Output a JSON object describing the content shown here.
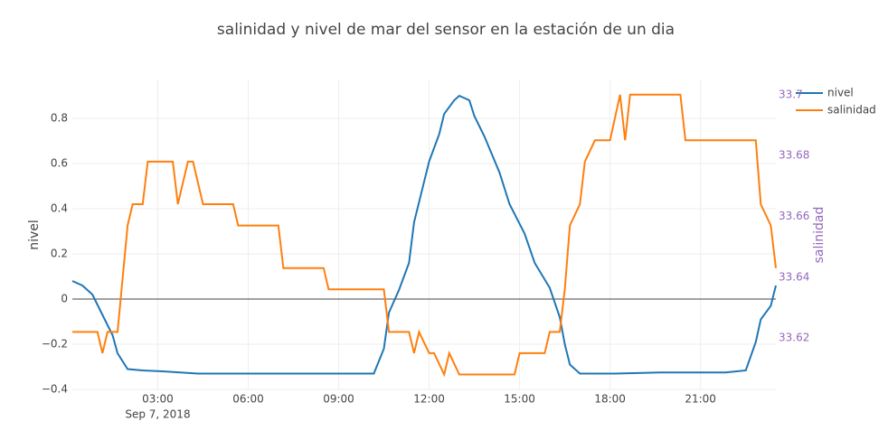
{
  "chart_data": {
    "type": "line",
    "title": "salinidad y nivel de mar del sensor en la estación de un dia",
    "y_label": "nivel",
    "y2_label": "salinidad",
    "x_date_label": "Sep 7, 2018",
    "xlim": [
      "2018-09-07 00:10",
      "2018-09-07 23:30"
    ],
    "xticks": [
      {
        "value": "2018-09-07 03:00",
        "label": "03:00"
      },
      {
        "value": "2018-09-07 06:00",
        "label": "06:00"
      },
      {
        "value": "2018-09-07 09:00",
        "label": "09:00"
      },
      {
        "value": "2018-09-07 12:00",
        "label": "12:00"
      },
      {
        "value": "2018-09-07 15:00",
        "label": "15:00"
      },
      {
        "value": "2018-09-07 18:00",
        "label": "18:00"
      },
      {
        "value": "2018-09-07 21:00",
        "label": "21:00"
      }
    ],
    "ylim": [
      -0.404,
      0.972
    ],
    "yticks": [
      {
        "value": -0.4,
        "label": "−0.4"
      },
      {
        "value": -0.2,
        "label": "−0.2"
      },
      0,
      0.2,
      0.4,
      0.6,
      0.8
    ],
    "y2lim": [
      33.6028,
      33.705
    ],
    "y2ticks": [
      33.62,
      33.64,
      33.66,
      33.68,
      33.7
    ],
    "grid": true,
    "legend": "top-right",
    "series": [
      {
        "name": "nivel",
        "color": "#1f77b4",
        "x": [
          "2018-09-07 00:10",
          "2018-09-07 00:30",
          "2018-09-07 00:50",
          "2018-09-07 01:10",
          "2018-09-07 01:30",
          "2018-09-07 01:40",
          "2018-09-07 02:00",
          "2018-09-07 02:30",
          "2018-09-07 03:10",
          "2018-09-07 04:20",
          "2018-09-07 05:20",
          "2018-09-07 06:50",
          "2018-09-07 08:00",
          "2018-09-07 08:50",
          "2018-09-07 10:10",
          "2018-09-07 10:30",
          "2018-09-07 10:40",
          "2018-09-07 11:00",
          "2018-09-07 11:20",
          "2018-09-07 11:30",
          "2018-09-07 12:00",
          "2018-09-07 12:20",
          "2018-09-07 12:30",
          "2018-09-07 12:50",
          "2018-09-07 13:00",
          "2018-09-07 13:20",
          "2018-09-07 13:30",
          "2018-09-07 13:50",
          "2018-09-07 14:20",
          "2018-09-07 14:40",
          "2018-09-07 15:10",
          "2018-09-07 15:30",
          "2018-09-07 16:00",
          "2018-09-07 16:20",
          "2018-09-07 16:30",
          "2018-09-07 16:40",
          "2018-09-07 17:00",
          "2018-09-07 18:10",
          "2018-09-07 19:40",
          "2018-09-07 21:50",
          "2018-09-07 22:30",
          "2018-09-07 22:50",
          "2018-09-07 23:00",
          "2018-09-07 23:20",
          "2018-09-07 23:30"
        ],
        "values": [
          0.08,
          0.06,
          0.02,
          -0.07,
          -0.16,
          -0.24,
          -0.31,
          -0.316,
          -0.32,
          -0.33,
          -0.33,
          -0.33,
          -0.33,
          -0.33,
          -0.33,
          -0.22,
          -0.06,
          0.04,
          0.16,
          0.34,
          0.61,
          0.73,
          0.82,
          0.88,
          0.9,
          0.88,
          0.81,
          0.72,
          0.56,
          0.42,
          0.29,
          0.16,
          0.05,
          -0.08,
          -0.2,
          -0.29,
          -0.33,
          -0.33,
          -0.325,
          -0.325,
          -0.316,
          -0.19,
          -0.09,
          -0.03,
          0.06
        ]
      },
      {
        "name": "salinidad",
        "color": "#ff7f0e",
        "axis": "y2",
        "x": [
          "2018-09-07 00:10",
          "2018-09-07 01:00",
          "2018-09-07 01:10",
          "2018-09-07 01:20",
          "2018-09-07 01:40",
          "2018-09-07 02:00",
          "2018-09-07 02:10",
          "2018-09-07 02:30",
          "2018-09-07 02:40",
          "2018-09-07 03:30",
          "2018-09-07 03:40",
          "2018-09-07 04:00",
          "2018-09-07 04:10",
          "2018-09-07 04:30",
          "2018-09-07 05:30",
          "2018-09-07 05:40",
          "2018-09-07 07:00",
          "2018-09-07 07:10",
          "2018-09-07 08:30",
          "2018-09-07 08:40",
          "2018-09-07 10:30",
          "2018-09-07 10:40",
          "2018-09-07 11:20",
          "2018-09-07 11:30",
          "2018-09-07 11:40",
          "2018-09-07 12:00",
          "2018-09-07 12:10",
          "2018-09-07 12:30",
          "2018-09-07 12:40",
          "2018-09-07 13:00",
          "2018-09-07 14:50",
          "2018-09-07 15:00",
          "2018-09-07 15:50",
          "2018-09-07 16:00",
          "2018-09-07 16:20",
          "2018-09-07 16:30",
          "2018-09-07 16:40",
          "2018-09-07 17:00",
          "2018-09-07 17:10",
          "2018-09-07 17:30",
          "2018-09-07 18:00",
          "2018-09-07 18:20",
          "2018-09-07 18:30",
          "2018-09-07 18:40",
          "2018-09-07 20:20",
          "2018-09-07 20:30",
          "2018-09-07 22:50",
          "2018-09-07 23:00",
          "2018-09-07 23:20",
          "2018-09-07 23:30"
        ],
        "values": [
          33.622,
          33.622,
          33.615,
          33.622,
          33.622,
          33.657,
          33.664,
          33.664,
          33.678,
          33.678,
          33.664,
          33.678,
          33.678,
          33.664,
          33.664,
          33.657,
          33.657,
          33.643,
          33.643,
          33.636,
          33.636,
          33.622,
          33.622,
          33.615,
          33.622,
          33.615,
          33.615,
          33.608,
          33.615,
          33.608,
          33.608,
          33.615,
          33.615,
          33.622,
          33.622,
          33.636,
          33.657,
          33.664,
          33.678,
          33.685,
          33.685,
          33.7,
          33.685,
          33.7,
          33.7,
          33.685,
          33.685,
          33.664,
          33.657,
          33.643
        ]
      }
    ]
  }
}
